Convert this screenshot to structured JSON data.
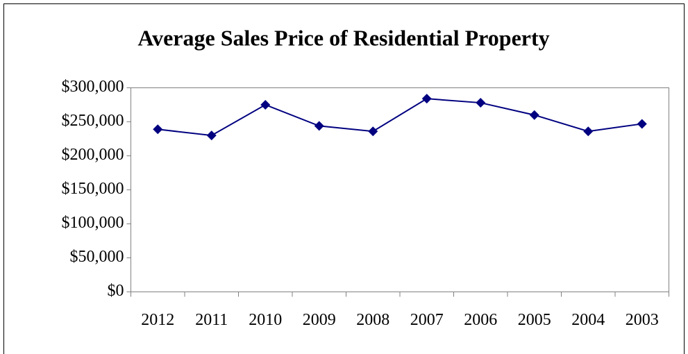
{
  "chart_data": {
    "type": "line",
    "title": "Average Sales Price of Residential Property",
    "categories": [
      "2012",
      "2011",
      "2010",
      "2009",
      "2008",
      "2007",
      "2006",
      "2005",
      "2004",
      "2003"
    ],
    "values": [
      239000,
      230000,
      275000,
      244000,
      236000,
      284000,
      278000,
      260000,
      236000,
      247000
    ],
    "color": "#000080",
    "ylim": [
      0,
      300000
    ],
    "yticks": [
      {
        "value": 0,
        "label": "$0"
      },
      {
        "value": 50000,
        "label": "$50,000"
      },
      {
        "value": 100000,
        "label": "$100,000"
      },
      {
        "value": 150000,
        "label": "$150,000"
      },
      {
        "value": 200000,
        "label": "$200,000"
      },
      {
        "value": 250000,
        "label": "$250,000"
      },
      {
        "value": 300000,
        "label": "$300,000"
      }
    ],
    "grid": false
  }
}
